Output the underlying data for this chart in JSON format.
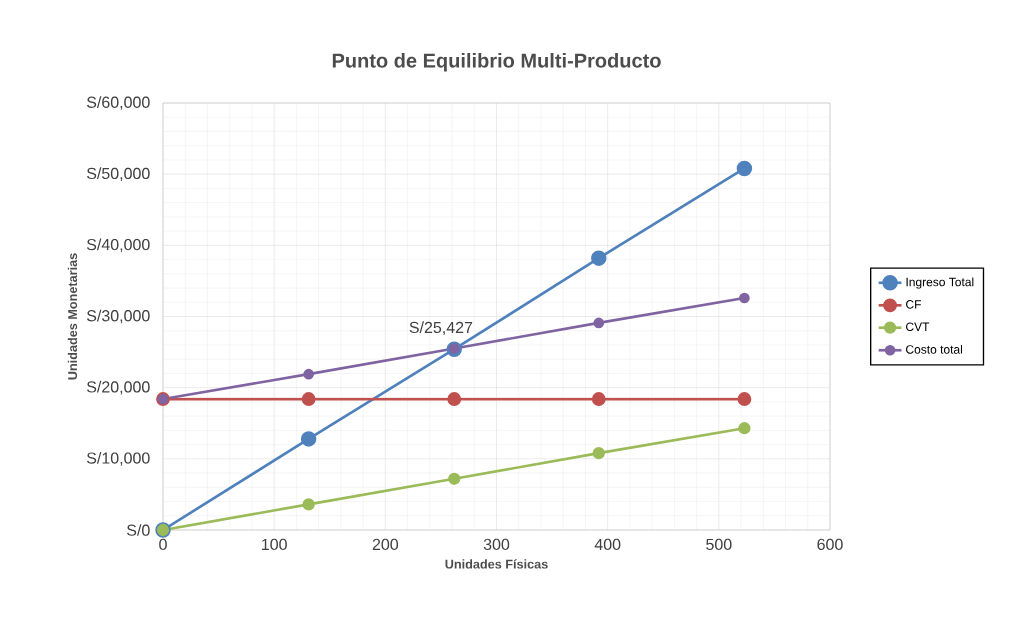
{
  "chart_data": {
    "type": "line",
    "title": "Punto de Equilibrio Multi-Producto",
    "xlabel": "Unidades Físicas",
    "ylabel": "Unidades Monetarias",
    "x": [
      0,
      131,
      262,
      392,
      523
    ],
    "series": [
      {
        "name": "Ingreso Total",
        "color": "#4f81bd",
        "values": [
          0,
          12800,
          25400,
          38200,
          50800
        ]
      },
      {
        "name": "CF",
        "color": "#c0504d",
        "values": [
          18400,
          18400,
          18400,
          18400,
          18400
        ]
      },
      {
        "name": "CVT",
        "color": "#9bbb59",
        "values": [
          0,
          3600,
          7200,
          10800,
          14300
        ]
      },
      {
        "name": "Costo total",
        "color": "#8064a2",
        "values": [
          18400,
          21900,
          25500,
          29100,
          32600
        ]
      }
    ],
    "xlim": [
      0,
      600
    ],
    "xticks": [
      0,
      100,
      200,
      300,
      400,
      500,
      600
    ],
    "ylim": [
      0,
      60000
    ],
    "yticks": [
      {
        "value": 0,
        "label": "S/0"
      },
      {
        "value": 10000,
        "label": "S/10,000"
      },
      {
        "value": 20000,
        "label": "S/20,000"
      },
      {
        "value": 30000,
        "label": "S/30,000"
      },
      {
        "value": 40000,
        "label": "S/40,000"
      },
      {
        "value": 50000,
        "label": "S/50,000"
      },
      {
        "value": 60000,
        "label": "S/60,000"
      }
    ],
    "annotations": [
      {
        "text": "S/25,427",
        "x": 262,
        "y": 25427
      }
    ],
    "grid": true,
    "legend": "right",
    "marker": "circle",
    "line_style": "solid"
  }
}
